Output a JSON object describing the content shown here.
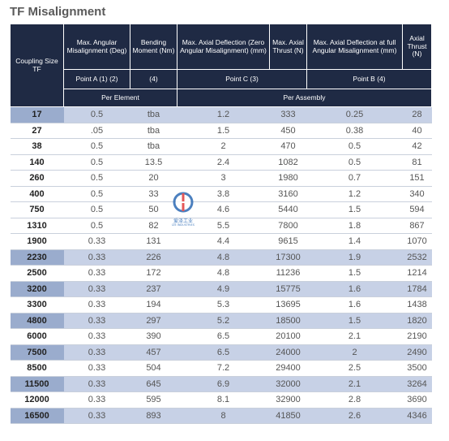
{
  "title": "TF Misalignment",
  "header": {
    "coupling_size": "Coupling Size TF",
    "max_angular_misalignment": "Max. Angular Misalignment (Deg)",
    "bending_moment": "Bending Moment (Nm)",
    "max_axial_deflection_zero": "Max. Axial Deflection (Zero Angular Misalignment) (mm)",
    "max_axial_thrust_1": "Max. Axial Thrust (N)",
    "max_axial_deflection_full": "Max. Axial Deflection at full Angular Misalignment (mm)",
    "axial_thrust_2": "Axial Thrust (N)",
    "point_a": "Point A (1) (2)",
    "point_a_note": "(4)",
    "point_c": "Point C (3)",
    "point_b": "Point B (4)",
    "per_element": "Per Element",
    "per_assembly": "Per Assembly"
  },
  "rows": [
    {
      "size": "17",
      "angular": "0.5",
      "moment": "tba",
      "deflection_zero": "1.2",
      "thrust_1": "333",
      "deflection_full": "0.25",
      "thrust_2": "28",
      "highlight": true
    },
    {
      "size": "27",
      "angular": ".05",
      "moment": "tba",
      "deflection_zero": "1.5",
      "thrust_1": "450",
      "deflection_full": "0.38",
      "thrust_2": "40",
      "highlight": false
    },
    {
      "size": "38",
      "angular": "0.5",
      "moment": "tba",
      "deflection_zero": "2",
      "thrust_1": "470",
      "deflection_full": "0.5",
      "thrust_2": "42",
      "highlight": false
    },
    {
      "size": "140",
      "angular": "0.5",
      "moment": "13.5",
      "deflection_zero": "2.4",
      "thrust_1": "1082",
      "deflection_full": "0.5",
      "thrust_2": "81",
      "highlight": false
    },
    {
      "size": "260",
      "angular": "0.5",
      "moment": "20",
      "deflection_zero": "3",
      "thrust_1": "1980",
      "deflection_full": "0.7",
      "thrust_2": "151",
      "highlight": false
    },
    {
      "size": "400",
      "angular": "0.5",
      "moment": "33",
      "deflection_zero": "3.8",
      "thrust_1": "3160",
      "deflection_full": "1.2",
      "thrust_2": "340",
      "highlight": false
    },
    {
      "size": "750",
      "angular": "0.5",
      "moment": "50",
      "deflection_zero": "4.6",
      "thrust_1": "5440",
      "deflection_full": "1.5",
      "thrust_2": "594",
      "highlight": false
    },
    {
      "size": "1310",
      "angular": "0.5",
      "moment": "82",
      "deflection_zero": "5.5",
      "thrust_1": "7800",
      "deflection_full": "1.8",
      "thrust_2": "867",
      "highlight": false
    },
    {
      "size": "1900",
      "angular": "0.33",
      "moment": "131",
      "deflection_zero": "4.4",
      "thrust_1": "9615",
      "deflection_full": "1.4",
      "thrust_2": "1070",
      "highlight": false
    },
    {
      "size": "2230",
      "angular": "0.33",
      "moment": "226",
      "deflection_zero": "4.8",
      "thrust_1": "17300",
      "deflection_full": "1.9",
      "thrust_2": "2532",
      "highlight": true
    },
    {
      "size": "2500",
      "angular": "0.33",
      "moment": "172",
      "deflection_zero": "4.8",
      "thrust_1": "11236",
      "deflection_full": "1.5",
      "thrust_2": "1214",
      "highlight": false
    },
    {
      "size": "3200",
      "angular": "0.33",
      "moment": "237",
      "deflection_zero": "4.9",
      "thrust_1": "15775",
      "deflection_full": "1.6",
      "thrust_2": "1784",
      "highlight": true
    },
    {
      "size": "3300",
      "angular": "0.33",
      "moment": "194",
      "deflection_zero": "5.3",
      "thrust_1": "13695",
      "deflection_full": "1.6",
      "thrust_2": "1438",
      "highlight": false
    },
    {
      "size": "4800",
      "angular": "0.33",
      "moment": "297",
      "deflection_zero": "5.2",
      "thrust_1": "18500",
      "deflection_full": "1.5",
      "thrust_2": "1820",
      "highlight": true
    },
    {
      "size": "6000",
      "angular": "0.33",
      "moment": "390",
      "deflection_zero": "6.5",
      "thrust_1": "20100",
      "deflection_full": "2.1",
      "thrust_2": "2190",
      "highlight": false
    },
    {
      "size": "7500",
      "angular": "0.33",
      "moment": "457",
      "deflection_zero": "6.5",
      "thrust_1": "24000",
      "deflection_full": "2",
      "thrust_2": "2490",
      "highlight": true
    },
    {
      "size": "8500",
      "angular": "0.33",
      "moment": "504",
      "deflection_zero": "7.2",
      "thrust_1": "29400",
      "deflection_full": "2.5",
      "thrust_2": "3500",
      "highlight": false
    },
    {
      "size": "11500",
      "angular": "0.33",
      "moment": "645",
      "deflection_zero": "6.9",
      "thrust_1": "32000",
      "deflection_full": "2.1",
      "thrust_2": "3264",
      "highlight": true
    },
    {
      "size": "12000",
      "angular": "0.33",
      "moment": "595",
      "deflection_zero": "8.1",
      "thrust_1": "32900",
      "deflection_full": "2.8",
      "thrust_2": "3690",
      "highlight": false
    },
    {
      "size": "16500",
      "angular": "0.33",
      "moment": "893",
      "deflection_zero": "8",
      "thrust_1": "41850",
      "deflection_full": "2.6",
      "thrust_2": "4346",
      "highlight": true
    }
  ],
  "watermark": {
    "text": "爱泽工业",
    "sub": "IZE INDUSTRIES",
    "icon": "logo-icon"
  },
  "colors": {
    "header_bg": "#1f2a44",
    "highlight_row": "#c7d1e6",
    "highlight_size": "#9aaccd",
    "logo": "#2d6bb5"
  }
}
